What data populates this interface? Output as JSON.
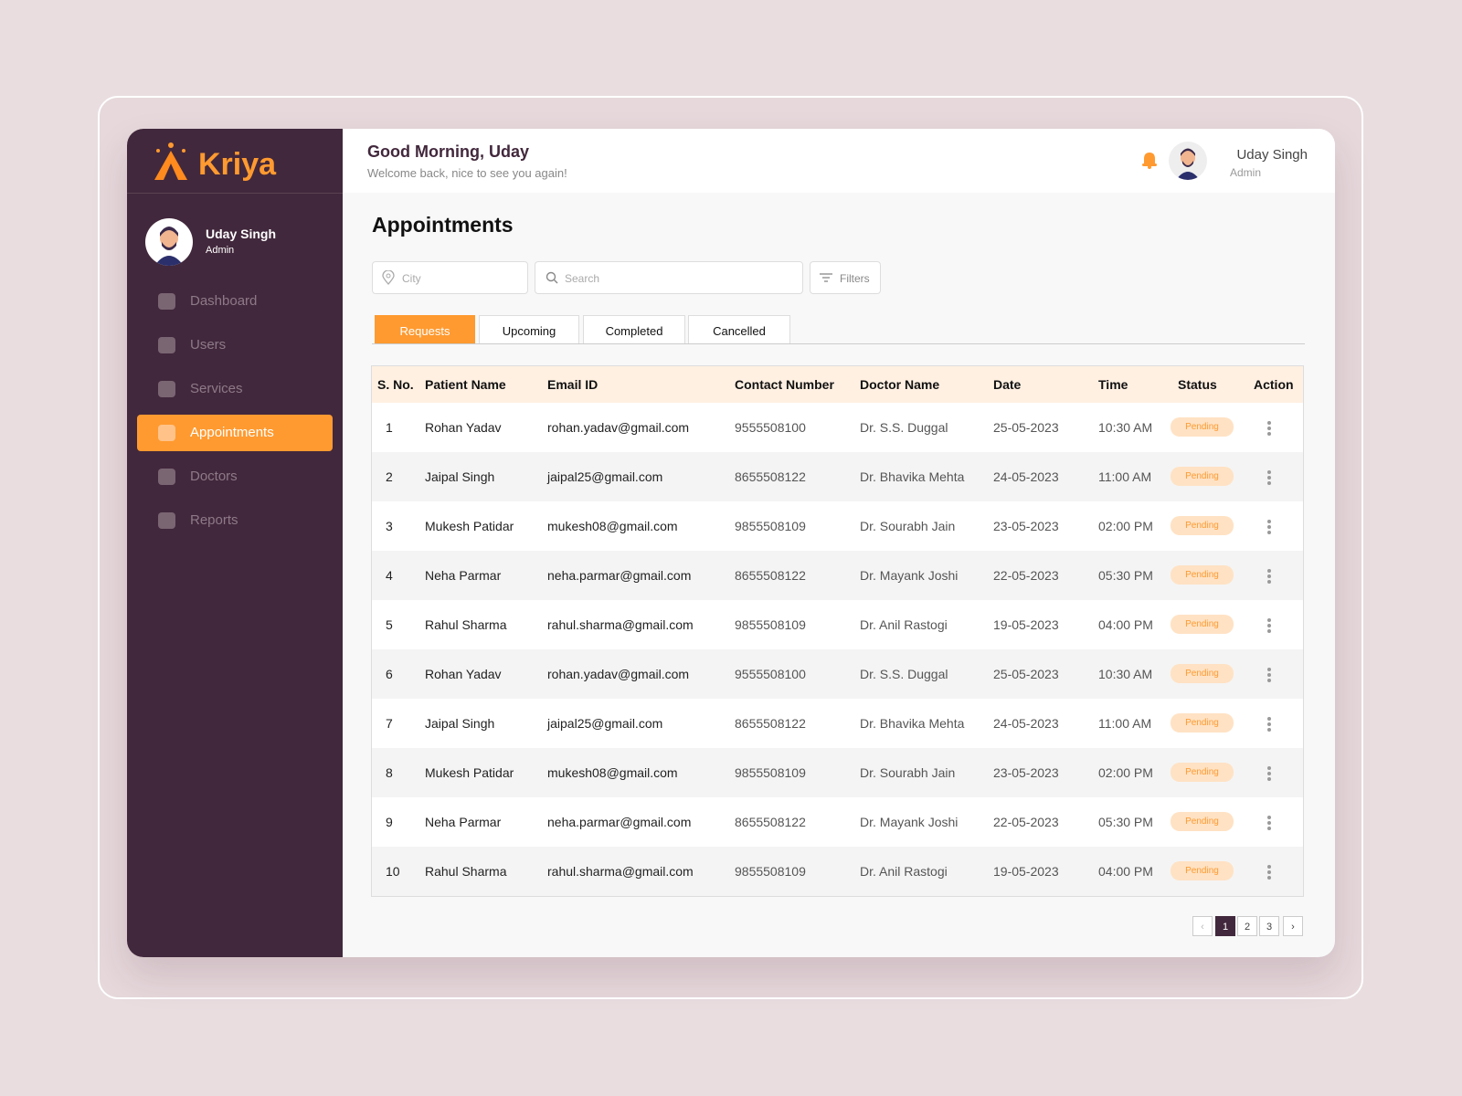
{
  "brand": "Kriya",
  "sidebar_user": {
    "name": "Uday Singh",
    "role": "Admin"
  },
  "nav": [
    "Dashboard",
    "Users",
    "Services",
    "Appointments",
    "Doctors",
    "Reports"
  ],
  "nav_active": 3,
  "header": {
    "greeting": "Good Morning, Uday",
    "subtitle": "Welcome back, nice to see you again!",
    "user_name": "Uday Singh",
    "user_role": "Admin"
  },
  "page_title": "Appointments",
  "filters": {
    "city_placeholder": "City",
    "search_placeholder": "Search",
    "filters_button": "Filters"
  },
  "tabs": [
    "Requests",
    "Upcoming",
    "Completed",
    "Cancelled"
  ],
  "tab_active": 0,
  "table": {
    "columns": [
      "S. No.",
      "Patient Name",
      "Email ID",
      "Contact Number",
      "Doctor Name",
      "Date",
      "Time",
      "Status",
      "Action"
    ],
    "rows": [
      [
        "1",
        "Rohan Yadav",
        "rohan.yadav@gmail.com",
        "9555508100",
        "Dr. S.S. Duggal",
        "25-05-2023",
        "10:30 AM",
        "Pending"
      ],
      [
        "2",
        "Jaipal Singh",
        "jaipal25@gmail.com",
        "8655508122",
        "Dr. Bhavika Mehta",
        "24-05-2023",
        "11:00 AM",
        "Pending"
      ],
      [
        "3",
        "Mukesh Patidar",
        "mukesh08@gmail.com",
        "9855508109",
        "Dr. Sourabh Jain",
        "23-05-2023",
        "02:00 PM",
        "Pending"
      ],
      [
        "4",
        "Neha Parmar",
        "neha.parmar@gmail.com",
        "8655508122",
        "Dr. Mayank Joshi",
        "22-05-2023",
        "05:30 PM",
        "Pending"
      ],
      [
        "5",
        "Rahul Sharma",
        "rahul.sharma@gmail.com",
        "9855508109",
        "Dr. Anil Rastogi",
        "19-05-2023",
        "04:00 PM",
        "Pending"
      ],
      [
        "6",
        "Rohan Yadav",
        "rohan.yadav@gmail.com",
        "9555508100",
        "Dr. S.S. Duggal",
        "25-05-2023",
        "10:30 AM",
        "Pending"
      ],
      [
        "7",
        "Jaipal Singh",
        "jaipal25@gmail.com",
        "8655508122",
        "Dr. Bhavika Mehta",
        "24-05-2023",
        "11:00 AM",
        "Pending"
      ],
      [
        "8",
        "Mukesh Patidar",
        "mukesh08@gmail.com",
        "9855508109",
        "Dr. Sourabh Jain",
        "23-05-2023",
        "02:00 PM",
        "Pending"
      ],
      [
        "9",
        "Neha Parmar",
        "neha.parmar@gmail.com",
        "8655508122",
        "Dr. Mayank Joshi",
        "22-05-2023",
        "05:30 PM",
        "Pending"
      ],
      [
        "10",
        "Rahul Sharma",
        "rahul.sharma@gmail.com",
        "9855508109",
        "Dr. Anil Rastogi",
        "19-05-2023",
        "04:00 PM",
        "Pending"
      ]
    ]
  },
  "pagination": {
    "pages": [
      "1",
      "2",
      "3"
    ],
    "active": 0
  }
}
